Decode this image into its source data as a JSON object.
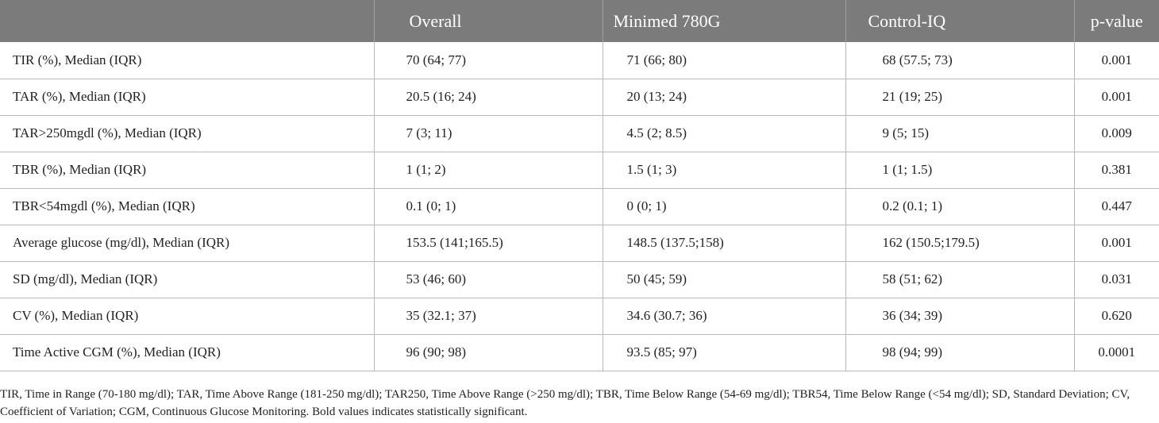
{
  "table": {
    "headers": [
      "",
      "Overall",
      "Minimed 780G",
      "Control-IQ",
      "p-value"
    ],
    "rows": [
      [
        "TIR (%), Median (IQR)",
        "70 (64; 77)",
        "71 (66; 80)",
        "68 (57.5; 73)",
        "0.001"
      ],
      [
        "TAR (%), Median (IQR)",
        "20.5 (16; 24)",
        "20 (13; 24)",
        "21 (19; 25)",
        "0.001"
      ],
      [
        "TAR>250mgdl (%), Median (IQR)",
        "7 (3; 11)",
        "4.5 (2; 8.5)",
        "9 (5; 15)",
        "0.009"
      ],
      [
        "TBR (%), Median (IQR)",
        "1 (1; 2)",
        "1.5 (1; 3)",
        "1 (1; 1.5)",
        "0.381"
      ],
      [
        "TBR<54mgdl (%), Median (IQR)",
        "0.1 (0; 1)",
        "0 (0; 1)",
        "0.2 (0.1; 1)",
        "0.447"
      ],
      [
        "Average glucose (mg/dl), Median (IQR)",
        "153.5 (141;165.5)",
        "148.5 (137.5;158)",
        "162 (150.5;179.5)",
        "0.001"
      ],
      [
        "SD (mg/dl), Median (IQR)",
        "53 (46; 60)",
        "50 (45; 59)",
        "58 (51; 62)",
        "0.031"
      ],
      [
        "CV (%), Median (IQR)",
        "35 (32.1; 37)",
        "34.6 (30.7; 36)",
        "36 (34; 39)",
        "0.620"
      ],
      [
        "Time Active CGM (%), Median (IQR)",
        "96 (90; 98)",
        "93.5 (85; 97)",
        "98 (94; 99)",
        "0.0001"
      ]
    ]
  },
  "footnote": "TIR, Time in Range (70-180 mg/dl); TAR, Time Above Range (181-250 mg/dl); TAR250, Time Above Range (>250 mg/dl); TBR, Time Below Range (54-69 mg/dl); TBR54, Time Below Range (<54 mg/dl); SD, Standard Deviation; CV, Coefficient of Variation; CGM, Continuous Glucose Monitoring. Bold values indicates statistically significant.",
  "colors": {
    "header_background": "#7b7b7b",
    "header_text": "#ffffff",
    "grid_line": "#b8b8b8"
  }
}
